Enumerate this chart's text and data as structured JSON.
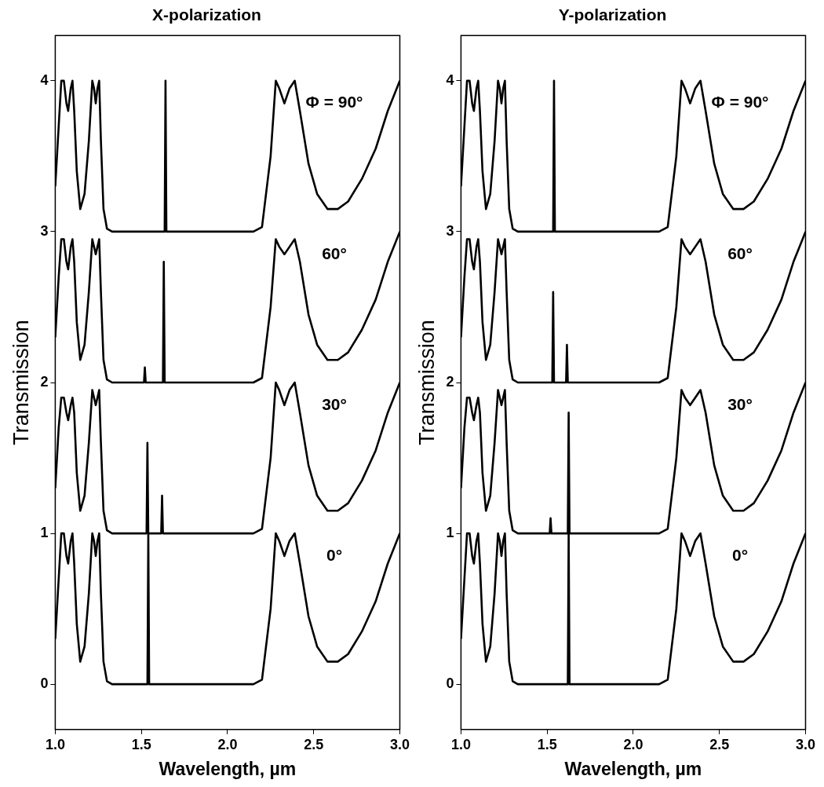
{
  "chart_data": [
    {
      "type": "line",
      "title": "X-polarization",
      "xlabel": "Wavelength, µm",
      "ylabel": "Transmission",
      "xlim": [
        1,
        3
      ],
      "ylim": [
        -0.3,
        4.3
      ],
      "xticks": [
        {
          "value": 1,
          "label": "1.0"
        },
        {
          "value": 1.5,
          "label": "1.5"
        },
        {
          "value": 2,
          "label": "2.0"
        },
        {
          "value": 2.5,
          "label": "2.5"
        },
        {
          "value": 3,
          "label": "3.0"
        }
      ],
      "yticks": [
        0,
        1,
        2,
        3,
        4
      ],
      "grid": false,
      "legend": false,
      "marker": "none",
      "line_style": "solid",
      "series": [
        {
          "name": "Φ = 90°",
          "color": "#000000",
          "x": [
            1,
            1.02,
            1.035,
            1.05,
            1.065,
            1.075,
            1.09,
            1.1,
            1.11,
            1.125,
            1.145,
            1.17,
            1.195,
            1.215,
            1.225,
            1.235,
            1.245,
            1.255,
            1.265,
            1.28,
            1.3,
            1.33,
            1.635,
            1.64,
            1.645,
            2.15,
            2.2,
            2.25,
            2.28,
            2.3,
            2.33,
            2.36,
            2.39,
            2.42,
            2.47,
            2.52,
            2.58,
            2.64,
            2.7,
            2.78,
            2.86,
            2.93,
            3
          ],
          "values": [
            3.3,
            3.7,
            4,
            4,
            3.85,
            3.8,
            3.95,
            4,
            3.8,
            3.4,
            3.15,
            3.25,
            3.6,
            4,
            3.95,
            3.85,
            3.95,
            4,
            3.6,
            3.15,
            3.02,
            3,
            3,
            4,
            3,
            3,
            3.03,
            3.5,
            4,
            3.95,
            3.85,
            3.95,
            4,
            3.8,
            3.45,
            3.25,
            3.15,
            3.15,
            3.2,
            3.35,
            3.55,
            3.8,
            4
          ]
        },
        {
          "name": "60°",
          "color": "#000000",
          "x": [
            1,
            1.02,
            1.035,
            1.05,
            1.065,
            1.075,
            1.09,
            1.1,
            1.11,
            1.125,
            1.145,
            1.17,
            1.195,
            1.215,
            1.225,
            1.235,
            1.245,
            1.255,
            1.265,
            1.28,
            1.3,
            1.33,
            1.515,
            1.52,
            1.525,
            1.625,
            1.63,
            1.635,
            2.15,
            2.2,
            2.25,
            2.28,
            2.3,
            2.33,
            2.36,
            2.39,
            2.42,
            2.47,
            2.52,
            2.58,
            2.64,
            2.7,
            2.78,
            2.86,
            2.93,
            3
          ],
          "values": [
            2.3,
            2.7,
            2.95,
            2.95,
            2.8,
            2.75,
            2.9,
            2.95,
            2.8,
            2.4,
            2.15,
            2.25,
            2.6,
            2.95,
            2.9,
            2.85,
            2.9,
            2.95,
            2.6,
            2.15,
            2.02,
            2,
            2,
            2.1,
            2,
            2,
            2.8,
            2,
            2,
            2.03,
            2.5,
            2.95,
            2.9,
            2.85,
            2.9,
            2.95,
            2.8,
            2.45,
            2.25,
            2.15,
            2.15,
            2.2,
            2.35,
            2.55,
            2.8,
            3
          ]
        },
        {
          "name": "30°",
          "color": "#000000",
          "x": [
            1,
            1.02,
            1.035,
            1.05,
            1.065,
            1.075,
            1.09,
            1.1,
            1.11,
            1.125,
            1.145,
            1.17,
            1.195,
            1.215,
            1.225,
            1.235,
            1.245,
            1.255,
            1.265,
            1.28,
            1.3,
            1.33,
            1.53,
            1.535,
            1.54,
            1.615,
            1.62,
            1.625,
            2.15,
            2.2,
            2.25,
            2.28,
            2.3,
            2.33,
            2.36,
            2.39,
            2.42,
            2.47,
            2.52,
            2.58,
            2.64,
            2.7,
            2.78,
            2.86,
            2.93,
            3
          ],
          "values": [
            1.3,
            1.7,
            1.9,
            1.9,
            1.8,
            1.75,
            1.85,
            1.9,
            1.8,
            1.4,
            1.15,
            1.25,
            1.6,
            1.95,
            1.9,
            1.85,
            1.9,
            1.95,
            1.6,
            1.15,
            1.02,
            1,
            1,
            1.6,
            1,
            1,
            1.25,
            1,
            1,
            1.03,
            1.5,
            2,
            1.95,
            1.85,
            1.95,
            2,
            1.8,
            1.45,
            1.25,
            1.15,
            1.15,
            1.2,
            1.35,
            1.55,
            1.8,
            2
          ]
        },
        {
          "name": "0°",
          "color": "#000000",
          "x": [
            1,
            1.02,
            1.035,
            1.05,
            1.065,
            1.075,
            1.09,
            1.1,
            1.11,
            1.125,
            1.145,
            1.17,
            1.195,
            1.215,
            1.225,
            1.235,
            1.245,
            1.255,
            1.265,
            1.28,
            1.3,
            1.33,
            1.535,
            1.54,
            1.545,
            2.15,
            2.2,
            2.25,
            2.28,
            2.3,
            2.33,
            2.36,
            2.39,
            2.42,
            2.47,
            2.52,
            2.58,
            2.64,
            2.7,
            2.78,
            2.86,
            2.93,
            3
          ],
          "values": [
            0.3,
            0.7,
            1,
            1,
            0.85,
            0.8,
            0.95,
            1,
            0.8,
            0.4,
            0.15,
            0.25,
            0.6,
            1,
            0.95,
            0.85,
            0.95,
            1,
            0.6,
            0.15,
            0.02,
            0,
            0,
            1,
            0,
            0,
            0.03,
            0.5,
            1,
            0.95,
            0.85,
            0.95,
            1,
            0.8,
            0.45,
            0.25,
            0.15,
            0.15,
            0.2,
            0.35,
            0.55,
            0.8,
            1
          ]
        }
      ]
    },
    {
      "type": "line",
      "title": "Y-polarization",
      "xlabel": "Wavelength, µm",
      "ylabel": "Transmission",
      "xlim": [
        1,
        3
      ],
      "ylim": [
        -0.3,
        4.3
      ],
      "xticks": [
        {
          "value": 1,
          "label": "1.0"
        },
        {
          "value": 1.5,
          "label": "1.5"
        },
        {
          "value": 2,
          "label": "2.0"
        },
        {
          "value": 2.5,
          "label": "2.5"
        },
        {
          "value": 3,
          "label": "3.0"
        }
      ],
      "yticks": [
        0,
        1,
        2,
        3,
        4
      ],
      "grid": false,
      "legend": false,
      "marker": "none",
      "line_style": "solid",
      "series": [
        {
          "name": "Φ = 90°",
          "color": "#000000",
          "x": [
            1,
            1.02,
            1.035,
            1.05,
            1.065,
            1.075,
            1.09,
            1.1,
            1.11,
            1.125,
            1.145,
            1.17,
            1.195,
            1.215,
            1.225,
            1.235,
            1.245,
            1.255,
            1.265,
            1.28,
            1.3,
            1.33,
            1.535,
            1.54,
            1.545,
            2.15,
            2.2,
            2.25,
            2.28,
            2.3,
            2.33,
            2.36,
            2.39,
            2.42,
            2.47,
            2.52,
            2.58,
            2.64,
            2.7,
            2.78,
            2.86,
            2.93,
            3
          ],
          "values": [
            3.3,
            3.7,
            4,
            4,
            3.85,
            3.8,
            3.95,
            4,
            3.8,
            3.4,
            3.15,
            3.25,
            3.6,
            4,
            3.95,
            3.85,
            3.95,
            4,
            3.6,
            3.15,
            3.02,
            3,
            3,
            4,
            3,
            3,
            3.03,
            3.5,
            4,
            3.95,
            3.85,
            3.95,
            4,
            3.8,
            3.45,
            3.25,
            3.15,
            3.15,
            3.2,
            3.35,
            3.55,
            3.8,
            4
          ]
        },
        {
          "name": "60°",
          "color": "#000000",
          "x": [
            1,
            1.02,
            1.035,
            1.05,
            1.065,
            1.075,
            1.09,
            1.1,
            1.11,
            1.125,
            1.145,
            1.17,
            1.195,
            1.215,
            1.225,
            1.235,
            1.245,
            1.255,
            1.265,
            1.28,
            1.3,
            1.33,
            1.53,
            1.535,
            1.54,
            1.61,
            1.615,
            1.62,
            2.15,
            2.2,
            2.25,
            2.28,
            2.3,
            2.33,
            2.36,
            2.39,
            2.42,
            2.47,
            2.52,
            2.58,
            2.64,
            2.7,
            2.78,
            2.86,
            2.93,
            3
          ],
          "values": [
            2.3,
            2.7,
            2.95,
            2.95,
            2.8,
            2.75,
            2.9,
            2.95,
            2.8,
            2.4,
            2.15,
            2.25,
            2.6,
            2.95,
            2.9,
            2.85,
            2.9,
            2.95,
            2.6,
            2.15,
            2.02,
            2,
            2,
            2.6,
            2,
            2,
            2.25,
            2,
            2,
            2.03,
            2.5,
            2.95,
            2.9,
            2.85,
            2.9,
            2.95,
            2.8,
            2.45,
            2.25,
            2.15,
            2.15,
            2.2,
            2.35,
            2.55,
            2.8,
            3
          ]
        },
        {
          "name": "30°",
          "color": "#000000",
          "x": [
            1,
            1.02,
            1.035,
            1.05,
            1.065,
            1.075,
            1.09,
            1.1,
            1.11,
            1.125,
            1.145,
            1.17,
            1.195,
            1.215,
            1.225,
            1.235,
            1.245,
            1.255,
            1.265,
            1.28,
            1.3,
            1.33,
            1.515,
            1.52,
            1.525,
            1.62,
            1.625,
            1.63,
            2.15,
            2.2,
            2.25,
            2.28,
            2.3,
            2.33,
            2.36,
            2.39,
            2.42,
            2.47,
            2.52,
            2.58,
            2.64,
            2.7,
            2.78,
            2.86,
            2.93,
            3
          ],
          "values": [
            1.3,
            1.7,
            1.9,
            1.9,
            1.8,
            1.75,
            1.85,
            1.9,
            1.8,
            1.4,
            1.15,
            1.25,
            1.6,
            1.95,
            1.9,
            1.85,
            1.9,
            1.95,
            1.6,
            1.15,
            1.02,
            1,
            1,
            1.1,
            1,
            1,
            1.8,
            1,
            1,
            1.03,
            1.5,
            1.95,
            1.9,
            1.85,
            1.9,
            1.95,
            1.8,
            1.45,
            1.25,
            1.15,
            1.15,
            1.2,
            1.35,
            1.55,
            1.8,
            2
          ]
        },
        {
          "name": "0°",
          "color": "#000000",
          "x": [
            1,
            1.02,
            1.035,
            1.05,
            1.065,
            1.075,
            1.09,
            1.1,
            1.11,
            1.125,
            1.145,
            1.17,
            1.195,
            1.215,
            1.225,
            1.235,
            1.245,
            1.255,
            1.265,
            1.28,
            1.3,
            1.33,
            1.62,
            1.625,
            1.63,
            2.15,
            2.2,
            2.25,
            2.28,
            2.3,
            2.33,
            2.36,
            2.39,
            2.42,
            2.47,
            2.52,
            2.58,
            2.64,
            2.7,
            2.78,
            2.86,
            2.93,
            3
          ],
          "values": [
            0.3,
            0.7,
            1,
            1,
            0.85,
            0.8,
            0.95,
            1,
            0.8,
            0.4,
            0.15,
            0.25,
            0.6,
            1,
            0.95,
            0.85,
            0.95,
            1,
            0.6,
            0.15,
            0.02,
            0,
            0,
            1,
            0,
            0,
            0.03,
            0.5,
            1,
            0.95,
            0.85,
            0.95,
            1,
            0.8,
            0.45,
            0.25,
            0.15,
            0.15,
            0.2,
            0.35,
            0.55,
            0.8,
            1
          ]
        }
      ]
    }
  ]
}
